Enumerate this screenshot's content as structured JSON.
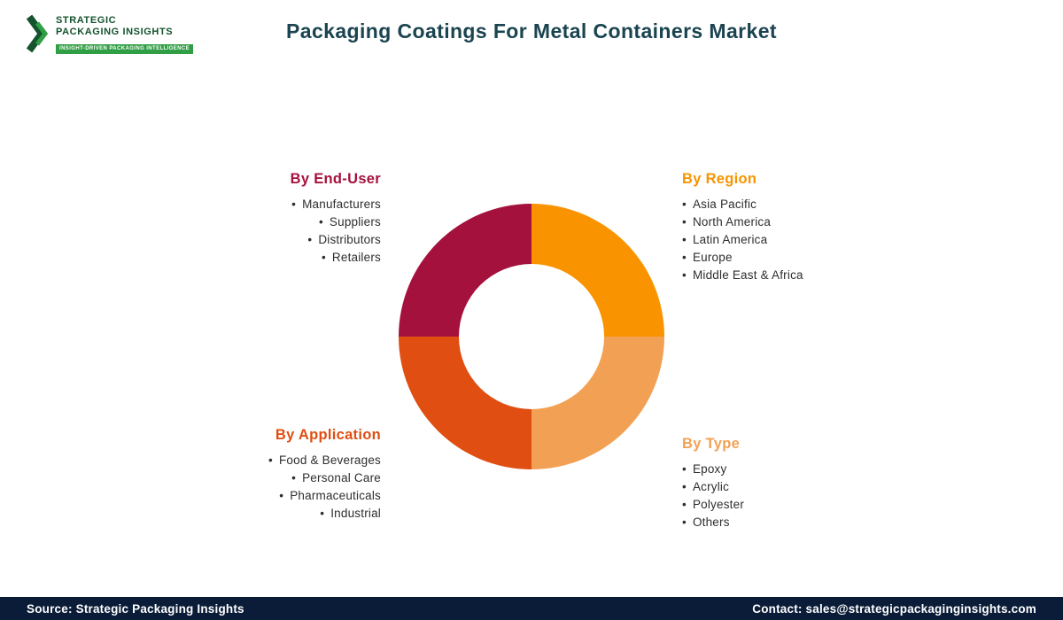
{
  "header": {
    "title": "Packaging Coatings For Metal Containers Market",
    "logo": {
      "line1": "STRATEGIC",
      "line2": "PACKAGING INSIGHTS",
      "tagline": "INSIGHT-DRIVEN PACKAGING INTELLIGENCE"
    }
  },
  "chart_data": {
    "type": "pie",
    "donut": true,
    "title": "Packaging Coatings For Metal Containers Market",
    "legend_position": "around-chart",
    "segments": [
      {
        "label": "By Region",
        "value": 25,
        "color": "#f99400",
        "position": "top-right"
      },
      {
        "label": "By Type",
        "value": 25,
        "color": "#f2a154",
        "position": "bottom-right"
      },
      {
        "label": "By Application",
        "value": 25,
        "color": "#e04e11",
        "position": "bottom-left"
      },
      {
        "label": "By End-User",
        "value": 25,
        "color": "#a5113d",
        "position": "top-left"
      }
    ]
  },
  "groups": {
    "end_user": {
      "heading": "By End-User",
      "color": "#a5113d",
      "items": [
        "Manufacturers",
        "Suppliers",
        "Distributors",
        "Retailers"
      ]
    },
    "region": {
      "heading": "By Region",
      "color": "#f99400",
      "items": [
        "Asia Pacific",
        "North America",
        "Latin America",
        "Europe",
        "Middle East & Africa"
      ]
    },
    "application": {
      "heading": "By Application",
      "color": "#e04e11",
      "items": [
        "Food & Beverages",
        "Personal Care",
        "Pharmaceuticals",
        "Industrial"
      ]
    },
    "type": {
      "heading": "By Type",
      "color": "#f2a154",
      "items": [
        "Epoxy",
        "Acrylic",
        "Polyester",
        "Others"
      ]
    }
  },
  "footer": {
    "source": "Source: Strategic Packaging Insights",
    "contact": "Contact: sales@strategicpackaginginsights.com"
  }
}
